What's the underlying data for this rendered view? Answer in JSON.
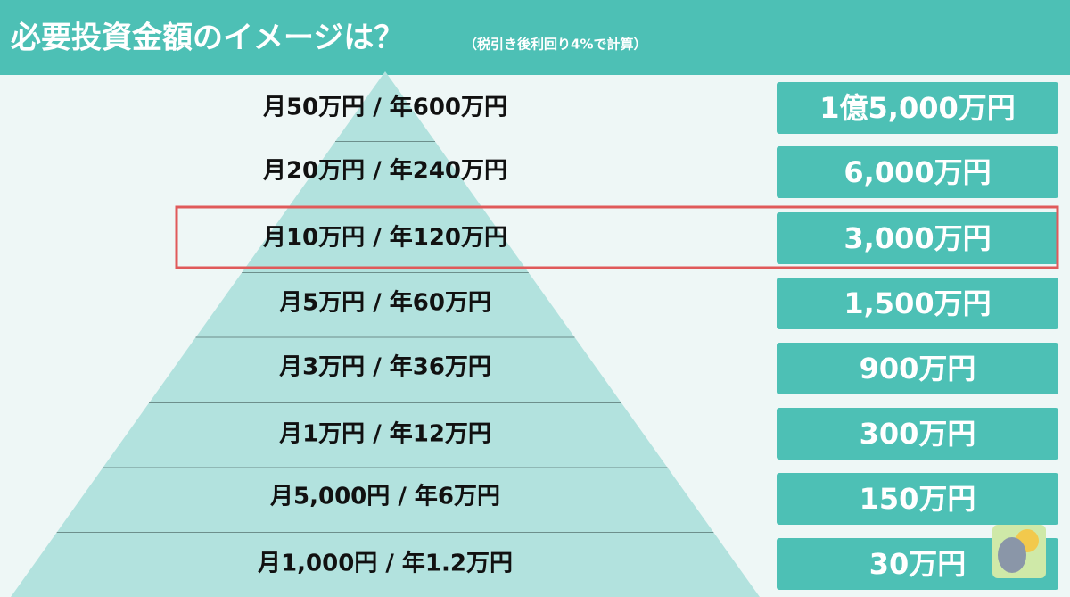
{
  "header": {
    "title": "必要投資金額のイメージは？",
    "note": "（税引き後利回り4%で計算）"
  },
  "rows": [
    {
      "label": "月50万円 / 年600万円",
      "amount": "1億5,000万円"
    },
    {
      "label": "月20万円 / 年240万円",
      "amount": "6,000万円"
    },
    {
      "label": "月10万円 / 年120万円",
      "amount": "3,000万円"
    },
    {
      "label": "月5万円 / 年60万円",
      "amount": "1,500万円"
    },
    {
      "label": "月3万円 / 年36万円",
      "amount": "900万円"
    },
    {
      "label": "月1万円 / 年12万円",
      "amount": "300万円"
    },
    {
      "label": "月5,000円 / 年6万円",
      "amount": "150万円"
    },
    {
      "label": "月1,000円 / 年1.2万円",
      "amount": "30万円"
    }
  ]
}
